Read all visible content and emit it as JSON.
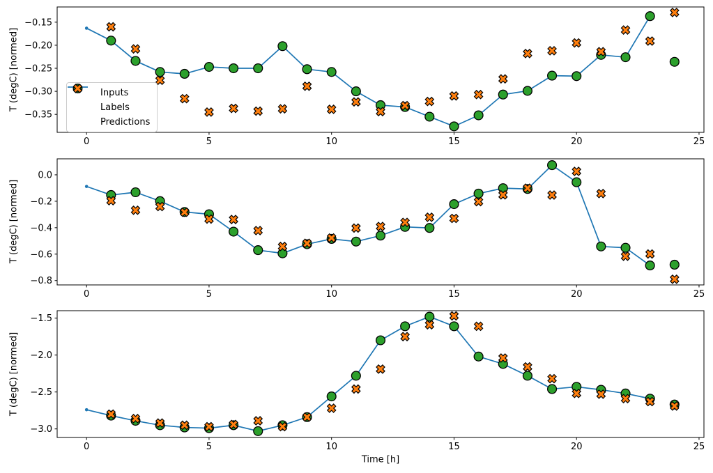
{
  "figure": {
    "xlabel": "Time [h]",
    "ylabel": "T (degC) [normed]",
    "colors": {
      "inputs_line": "#1f77b4",
      "labels_marker": "#2ca02c",
      "predictions_marker": "#ff7f0e",
      "marker_edge": "#000000",
      "spine": "#000000",
      "legend_border": "#cccccc"
    },
    "legend": {
      "position": "inside panel 1, left, vertically centered",
      "items": [
        {
          "label": "Inputs",
          "marker": "line-dot",
          "color": "#1f77b4"
        },
        {
          "label": "Labels",
          "marker": "circle",
          "color": "#2ca02c"
        },
        {
          "label": "Predictions",
          "marker": "x-cross",
          "color": "#ff7f0e"
        }
      ]
    }
  },
  "chart_data": [
    {
      "type": "line",
      "panel": 1,
      "ylabel": "T (degC) [normed]",
      "grid": false,
      "xlim": [
        -1.2,
        25.2
      ],
      "ylim": [
        -0.389,
        -0.117
      ],
      "xticks": [
        0,
        5,
        10,
        15,
        20,
        25
      ],
      "xtick_labels": [
        "0",
        "5",
        "10",
        "15",
        "20",
        "25"
      ],
      "yticks": [
        -0.15,
        -0.2,
        -0.25,
        -0.3,
        -0.35
      ],
      "ytick_labels": [
        "−0.15",
        "−0.20",
        "−0.25",
        "−0.30",
        "−0.35"
      ],
      "series": [
        {
          "name": "Inputs",
          "type": "line",
          "marker": "dot",
          "color": "#1f77b4",
          "x": [
            0,
            1,
            2,
            3,
            4,
            5,
            6,
            7,
            8,
            9,
            10,
            11,
            12,
            13,
            14,
            15,
            16,
            17,
            18,
            19,
            20,
            21,
            22,
            23
          ],
          "y": [
            -0.163,
            -0.19,
            -0.234,
            -0.258,
            -0.262,
            -0.247,
            -0.25,
            -0.25,
            -0.202,
            -0.252,
            -0.258,
            -0.3,
            -0.33,
            -0.334,
            -0.355,
            -0.376,
            -0.352,
            -0.307,
            -0.299,
            -0.266,
            -0.267,
            -0.221,
            -0.226,
            -0.137
          ]
        },
        {
          "name": "Labels",
          "type": "scatter",
          "marker": "circle",
          "color": "#2ca02c",
          "x": [
            1,
            2,
            3,
            4,
            5,
            6,
            7,
            8,
            9,
            10,
            11,
            12,
            13,
            14,
            15,
            16,
            17,
            18,
            19,
            20,
            21,
            22,
            23,
            24
          ],
          "y": [
            -0.19,
            -0.234,
            -0.258,
            -0.262,
            -0.247,
            -0.25,
            -0.25,
            -0.202,
            -0.252,
            -0.258,
            -0.3,
            -0.33,
            -0.334,
            -0.355,
            -0.376,
            -0.352,
            -0.307,
            -0.299,
            -0.266,
            -0.267,
            -0.221,
            -0.226,
            -0.137,
            -0.236
          ]
        },
        {
          "name": "Predictions",
          "type": "scatter",
          "marker": "X",
          "color": "#ff7f0e",
          "x": [
            1,
            2,
            3,
            4,
            5,
            6,
            7,
            8,
            9,
            10,
            11,
            12,
            13,
            14,
            15,
            16,
            17,
            18,
            19,
            20,
            21,
            22,
            23,
            24
          ],
          "y": [
            -0.16,
            -0.208,
            -0.276,
            -0.316,
            -0.345,
            -0.337,
            -0.343,
            -0.338,
            -0.289,
            -0.339,
            -0.323,
            -0.344,
            -0.331,
            -0.322,
            -0.31,
            -0.307,
            -0.273,
            -0.218,
            -0.212,
            -0.195,
            -0.214,
            -0.167,
            -0.191,
            -0.129
          ]
        }
      ]
    },
    {
      "type": "line",
      "panel": 2,
      "ylabel": "T (degC) [normed]",
      "grid": false,
      "xlim": [
        -1.2,
        25.2
      ],
      "ylim": [
        -0.833,
        0.121
      ],
      "xticks": [
        0,
        5,
        10,
        15,
        20,
        25
      ],
      "xtick_labels": [
        "0",
        "5",
        "10",
        "15",
        "20",
        "25"
      ],
      "yticks": [
        0.0,
        -0.2,
        -0.4,
        -0.6,
        -0.8
      ],
      "ytick_labels": [
        "0.0",
        "−0.2",
        "−0.4",
        "−0.6",
        "−0.8"
      ],
      "series": [
        {
          "name": "Inputs",
          "type": "line",
          "marker": "dot",
          "color": "#1f77b4",
          "x": [
            0,
            1,
            2,
            3,
            4,
            5,
            6,
            7,
            8,
            9,
            10,
            11,
            12,
            13,
            14,
            15,
            16,
            17,
            18,
            19,
            20,
            21,
            22,
            23
          ],
          "y": [
            -0.088,
            -0.153,
            -0.132,
            -0.199,
            -0.281,
            -0.298,
            -0.43,
            -0.57,
            -0.594,
            -0.525,
            -0.485,
            -0.505,
            -0.46,
            -0.394,
            -0.402,
            -0.222,
            -0.142,
            -0.101,
            -0.107,
            0.073,
            -0.056,
            -0.542,
            -0.552,
            -0.686
          ]
        },
        {
          "name": "Labels",
          "type": "scatter",
          "marker": "circle",
          "color": "#2ca02c",
          "x": [
            1,
            2,
            3,
            4,
            5,
            6,
            7,
            8,
            9,
            10,
            11,
            12,
            13,
            14,
            15,
            16,
            17,
            18,
            19,
            20,
            21,
            22,
            23,
            24
          ],
          "y": [
            -0.153,
            -0.132,
            -0.199,
            -0.281,
            -0.298,
            -0.43,
            -0.57,
            -0.594,
            -0.525,
            -0.485,
            -0.505,
            -0.46,
            -0.394,
            -0.402,
            -0.222,
            -0.142,
            -0.101,
            -0.107,
            0.073,
            -0.056,
            -0.542,
            -0.552,
            -0.686,
            -0.68
          ]
        },
        {
          "name": "Predictions",
          "type": "scatter",
          "marker": "X",
          "color": "#ff7f0e",
          "x": [
            1,
            2,
            3,
            4,
            5,
            6,
            7,
            8,
            9,
            10,
            11,
            12,
            13,
            14,
            15,
            16,
            17,
            18,
            19,
            20,
            21,
            22,
            23,
            24
          ],
          "y": [
            -0.196,
            -0.268,
            -0.24,
            -0.283,
            -0.335,
            -0.338,
            -0.422,
            -0.542,
            -0.518,
            -0.478,
            -0.403,
            -0.391,
            -0.36,
            -0.321,
            -0.33,
            -0.203,
            -0.152,
            -0.101,
            -0.153,
            0.026,
            -0.142,
            -0.616,
            -0.599,
            -0.79
          ]
        }
      ]
    },
    {
      "type": "line",
      "panel": 3,
      "ylabel": "T (degC) [normed]",
      "xlabel": "Time [h]",
      "grid": false,
      "xlim": [
        -1.2,
        25.2
      ],
      "ylim": [
        -3.116,
        -1.399
      ],
      "xticks": [
        0,
        5,
        10,
        15,
        20,
        25
      ],
      "xtick_labels": [
        "0",
        "5",
        "10",
        "15",
        "20",
        "25"
      ],
      "yticks": [
        -1.5,
        -2.0,
        -2.5,
        -3.0
      ],
      "ytick_labels": [
        "−1.5",
        "−2.0",
        "−2.5",
        "−3.0"
      ],
      "series": [
        {
          "name": "Inputs",
          "type": "line",
          "marker": "dot",
          "color": "#1f77b4",
          "x": [
            0,
            1,
            2,
            3,
            4,
            5,
            6,
            7,
            8,
            9,
            10,
            11,
            12,
            13,
            14,
            15,
            16,
            17,
            18,
            19,
            20,
            21,
            22,
            23
          ],
          "y": [
            -2.74,
            -2.82,
            -2.89,
            -2.95,
            -2.98,
            -2.99,
            -2.95,
            -3.03,
            -2.95,
            -2.84,
            -2.56,
            -2.28,
            -1.8,
            -1.61,
            -1.48,
            -1.61,
            -2.02,
            -2.12,
            -2.28,
            -2.46,
            -2.43,
            -2.47,
            -2.52,
            -2.59
          ]
        },
        {
          "name": "Labels",
          "type": "scatter",
          "marker": "circle",
          "color": "#2ca02c",
          "x": [
            1,
            2,
            3,
            4,
            5,
            6,
            7,
            8,
            9,
            10,
            11,
            12,
            13,
            14,
            15,
            16,
            17,
            18,
            19,
            20,
            21,
            22,
            23,
            24
          ],
          "y": [
            -2.82,
            -2.89,
            -2.95,
            -2.98,
            -2.99,
            -2.95,
            -3.03,
            -2.95,
            -2.84,
            -2.56,
            -2.28,
            -1.8,
            -1.61,
            -1.48,
            -1.61,
            -2.02,
            -2.12,
            -2.28,
            -2.46,
            -2.43,
            -2.47,
            -2.52,
            -2.59,
            -2.67
          ]
        },
        {
          "name": "Predictions",
          "type": "scatter",
          "marker": "X",
          "color": "#ff7f0e",
          "x": [
            1,
            2,
            3,
            4,
            5,
            6,
            7,
            8,
            9,
            10,
            11,
            12,
            13,
            14,
            15,
            16,
            17,
            18,
            19,
            20,
            21,
            22,
            23,
            24
          ],
          "y": [
            -2.8,
            -2.86,
            -2.92,
            -2.95,
            -2.97,
            -2.94,
            -2.89,
            -2.97,
            -2.84,
            -2.72,
            -2.46,
            -2.19,
            -1.75,
            -1.59,
            -1.47,
            -1.61,
            -2.04,
            -2.16,
            -2.32,
            -2.52,
            -2.53,
            -2.59,
            -2.63,
            -2.69
          ]
        }
      ]
    }
  ]
}
